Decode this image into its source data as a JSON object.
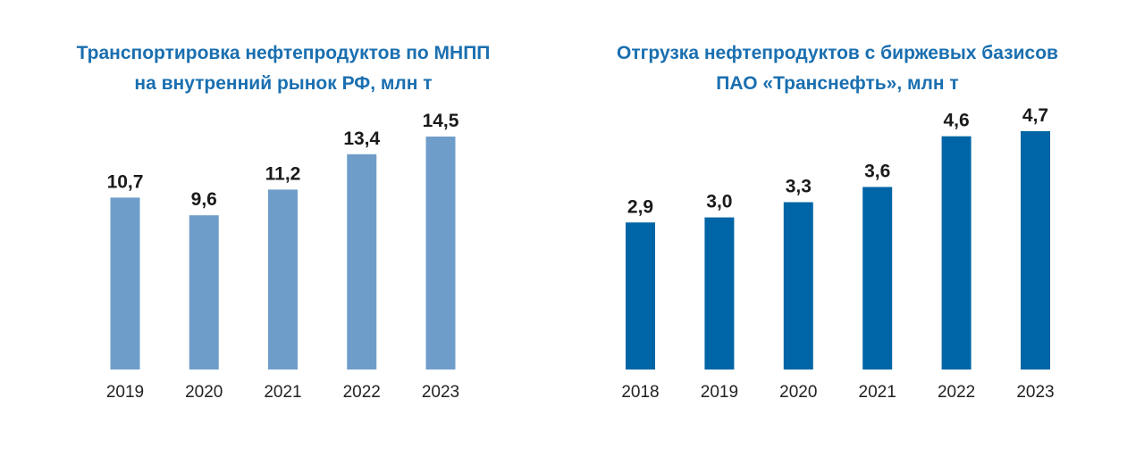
{
  "chart_data": [
    {
      "type": "bar",
      "title_lines": [
        "Транспортировка нефтепродуктов по МНПП",
        "на внутренний рынок РФ, млн т"
      ],
      "categories": [
        "2019",
        "2020",
        "2021",
        "2022",
        "2023"
      ],
      "values": [
        10.7,
        9.6,
        11.2,
        13.4,
        14.5
      ],
      "value_labels": [
        "10,7",
        "9,6",
        "11,2",
        "13,4",
        "14,5"
      ],
      "xlabel": "",
      "ylabel": "",
      "ylim": [
        0,
        14.5
      ],
      "grid": false,
      "bar_color": "#6f9dca",
      "title_color": "#1a6fb0"
    },
    {
      "type": "bar",
      "title_lines": [
        "Отгрузка нефтепродуктов с биржевых базисов",
        "ПАО «Транснефть», млн т"
      ],
      "categories": [
        "2018",
        "2019",
        "2020",
        "2021",
        "2022",
        "2023"
      ],
      "values": [
        2.9,
        3.0,
        3.3,
        3.6,
        4.6,
        4.7
      ],
      "value_labels": [
        "2,9",
        "3,0",
        "3,3",
        "3,6",
        "4,6",
        "4,7"
      ],
      "xlabel": "",
      "ylabel": "",
      "ylim": [
        0,
        4.7
      ],
      "grid": false,
      "bar_color": "#0065a6",
      "title_color": "#1a6fb0"
    }
  ]
}
